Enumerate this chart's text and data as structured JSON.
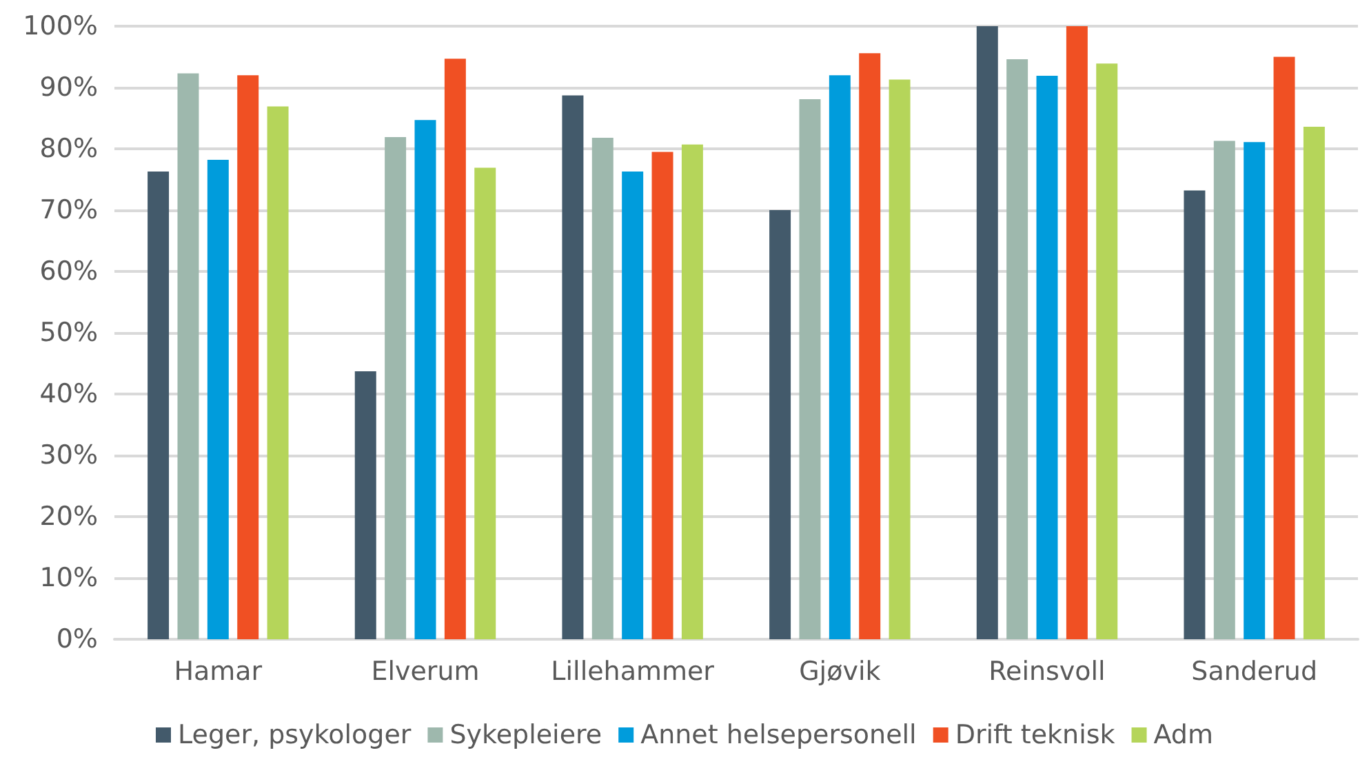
{
  "chart_data": {
    "type": "bar",
    "categories": [
      "Hamar",
      "Elverum",
      "Lillehammer",
      "Gjøvik",
      "Reinsvoll",
      "Sanderud"
    ],
    "series": [
      {
        "name": "Leger, psykologer",
        "color": "#435a6b",
        "values": [
          76.3,
          43.7,
          88.7,
          70.0,
          100,
          73.2
        ]
      },
      {
        "name": "Sykepleiere",
        "color": "#9eb8ad",
        "values": [
          92.3,
          81.9,
          81.8,
          88.1,
          94.6,
          81.3
        ]
      },
      {
        "name": "Annet helsepersonell",
        "color": "#009cdc",
        "values": [
          78.2,
          84.7,
          76.3,
          92.0,
          91.9,
          81.1
        ]
      },
      {
        "name": "Drift teknisk",
        "color": "#f05023",
        "values": [
          92.0,
          94.7,
          79.5,
          95.6,
          100,
          95.0
        ]
      },
      {
        "name": "Adm",
        "color": "#b5d55a",
        "values": [
          86.9,
          76.9,
          80.7,
          91.3,
          93.9,
          83.6
        ]
      }
    ],
    "ylim": [
      0,
      100
    ],
    "yticks": [
      {
        "value": 0,
        "label": "0%"
      },
      {
        "value": 10,
        "label": "10%"
      },
      {
        "value": 20,
        "label": "20%"
      },
      {
        "value": 30,
        "label": "30%"
      },
      {
        "value": 40,
        "label": "40%"
      },
      {
        "value": 50,
        "label": "50%"
      },
      {
        "value": 60,
        "label": "60%"
      },
      {
        "value": 70,
        "label": "70%"
      },
      {
        "value": 80,
        "label": "80%"
      },
      {
        "value": 90,
        "label": "90%"
      },
      {
        "value": 100,
        "label": "100%"
      }
    ],
    "grid": "y",
    "legend": "bottom"
  }
}
